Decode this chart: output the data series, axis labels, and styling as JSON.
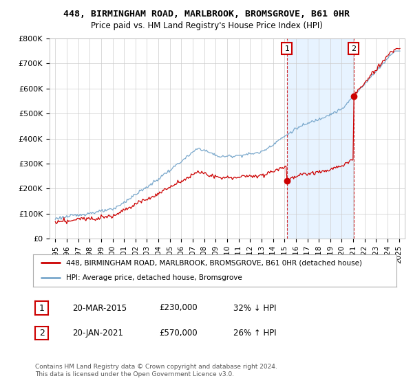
{
  "title": "448, BIRMINGHAM ROAD, MARLBROOK, BROMSGROVE, B61 0HR",
  "subtitle": "Price paid vs. HM Land Registry's House Price Index (HPI)",
  "legend_line1": "448, BIRMINGHAM ROAD, MARLBROOK, BROMSGROVE, B61 0HR (detached house)",
  "legend_line2": "HPI: Average price, detached house, Bromsgrove",
  "footer": "Contains HM Land Registry data © Crown copyright and database right 2024.\nThis data is licensed under the Open Government Licence v3.0.",
  "transactions": [
    {
      "num": 1,
      "date": "20-MAR-2015",
      "price": "£230,000",
      "pct": "32% ↓ HPI",
      "year": 2015.22
    },
    {
      "num": 2,
      "date": "20-JAN-2021",
      "price": "£570,000",
      "pct": "26% ↑ HPI",
      "year": 2021.05
    }
  ],
  "transaction_prices": [
    230000,
    570000
  ],
  "ylim": [
    0,
    800000
  ],
  "yticks": [
    0,
    100000,
    200000,
    300000,
    400000,
    500000,
    600000,
    700000,
    800000
  ],
  "ytick_labels": [
    "£0",
    "£100K",
    "£200K",
    "£300K",
    "£400K",
    "£500K",
    "£600K",
    "£700K",
    "£800K"
  ],
  "red_color": "#cc0000",
  "blue_color": "#7aa8cc",
  "shade_color": "#ddeeff",
  "dashed_color": "#cc0000",
  "bg_color": "#ffffff",
  "grid_color": "#cccccc"
}
